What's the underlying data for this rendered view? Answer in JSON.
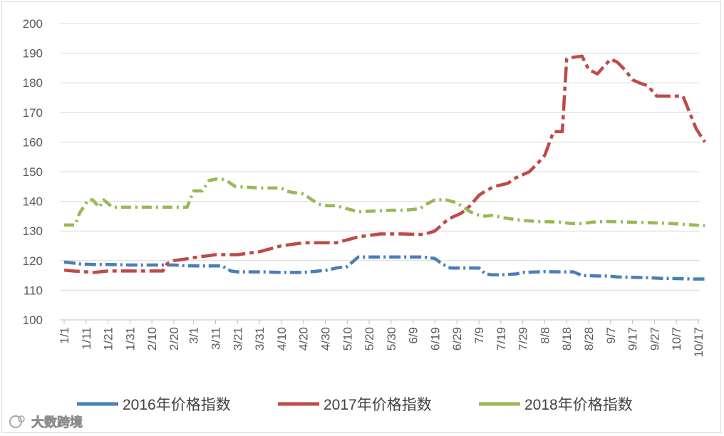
{
  "chart_data": {
    "type": "line",
    "title": "",
    "xlabel": "",
    "ylabel": "",
    "ylim": [
      100,
      200
    ],
    "yticks": [
      100,
      110,
      120,
      130,
      140,
      150,
      160,
      170,
      180,
      190,
      200
    ],
    "xlim": [
      0,
      292
    ],
    "x_tick_labels": [
      "1/1",
      "1/11",
      "1/21",
      "1/31",
      "2/10",
      "2/20",
      "3/1",
      "3/11",
      "3/21",
      "3/31",
      "4/10",
      "4/20",
      "4/30",
      "5/10",
      "5/20",
      "5/30",
      "6/9",
      "6/19",
      "6/29",
      "7/9",
      "7/19",
      "7/29",
      "8/8",
      "8/18",
      "8/28",
      "9/7",
      "9/17",
      "9/27",
      "10/7",
      "10/17"
    ],
    "grid": "horizontal",
    "legend_position": "bottom",
    "series": [
      {
        "name": "2016年价格指数",
        "color": "#4a7ebb",
        "dates": [
          "1/1",
          "1/5",
          "1/9",
          "1/14",
          "1/21",
          "1/26",
          "1/31",
          "2/10",
          "2/15",
          "2/20",
          "2/25",
          "3/1",
          "3/6",
          "3/11",
          "3/14",
          "3/18",
          "3/21",
          "4/1",
          "4/10",
          "4/20",
          "4/27",
          "5/1",
          "5/5",
          "5/10",
          "5/15",
          "5/30",
          "6/5",
          "6/13",
          "6/16",
          "6/19",
          "6/22",
          "6/26",
          "7/5",
          "7/9",
          "7/12",
          "7/15",
          "7/19",
          "7/26",
          "7/29",
          "8/5",
          "8/8",
          "8/15",
          "8/21",
          "8/25",
          "9/1",
          "9/6",
          "9/10",
          "9/20",
          "9/25",
          "9/30",
          "10/5",
          "10/10",
          "10/15",
          "10/20"
        ],
        "values": [
          119.5,
          119.2,
          118.8,
          118.7,
          118.7,
          118.6,
          118.5,
          118.5,
          118.5,
          118.5,
          118.3,
          118.2,
          118.2,
          118.2,
          118.2,
          116.5,
          116.2,
          116.2,
          116.0,
          116.0,
          116.5,
          116.8,
          117.5,
          118.0,
          121.2,
          121.2,
          121.2,
          121.2,
          121.0,
          120.7,
          119.0,
          117.5,
          117.5,
          117.5,
          115.5,
          115.2,
          115.2,
          115.5,
          116.0,
          116.2,
          116.3,
          116.2,
          116.2,
          115.0,
          114.8,
          114.8,
          114.5,
          114.3,
          114.2,
          114.0,
          114.0,
          113.9,
          113.8,
          113.8
        ]
      },
      {
        "name": "2017年价格指数",
        "color": "#be4b48",
        "dates": [
          "1/1",
          "1/5",
          "1/11",
          "1/15",
          "1/21",
          "2/1",
          "2/10",
          "2/15",
          "2/17",
          "2/20",
          "2/25",
          "3/1",
          "3/6",
          "3/11",
          "3/16",
          "3/21",
          "3/26",
          "3/31",
          "4/5",
          "4/10",
          "4/20",
          "4/30",
          "5/5",
          "5/10",
          "5/15",
          "5/25",
          "6/4",
          "6/14",
          "6/19",
          "6/22",
          "6/25",
          "7/1",
          "7/5",
          "7/9",
          "7/12",
          "7/16",
          "7/22",
          "7/26",
          "8/1",
          "8/5",
          "8/8",
          "8/12",
          "8/16",
          "8/18",
          "8/20",
          "8/25",
          "8/28",
          "9/1",
          "9/7",
          "9/10",
          "9/14",
          "9/17",
          "9/20",
          "9/24",
          "9/28",
          "10/5",
          "10/10",
          "10/13",
          "10/16",
          "10/20"
        ],
        "values": [
          116.8,
          116.5,
          116.2,
          116.0,
          116.5,
          116.5,
          116.5,
          116.5,
          119.0,
          120.0,
          120.5,
          121.0,
          121.5,
          122.0,
          122.0,
          122.0,
          122.5,
          123.0,
          124.0,
          125.0,
          126.0,
          126.0,
          126.0,
          127.0,
          128.0,
          129.0,
          129.0,
          128.8,
          130.0,
          132.0,
          134.0,
          136.0,
          138.5,
          142.0,
          143.5,
          145.0,
          146.0,
          148.0,
          150.0,
          153.0,
          155.5,
          163.5,
          163.5,
          188.0,
          188.5,
          189.0,
          184.5,
          183.0,
          188.0,
          187.0,
          184.0,
          181.0,
          180.0,
          179.0,
          175.5,
          175.5,
          175.5,
          170.0,
          164.5,
          160.0
        ]
      },
      {
        "name": "2018年价格指数",
        "color": "#98b954",
        "dates": [
          "1/1",
          "1/6",
          "1/8",
          "1/12",
          "1/14",
          "1/17",
          "1/19",
          "1/23",
          "1/31",
          "2/10",
          "2/20",
          "2/26",
          "3/1",
          "3/5",
          "3/8",
          "3/11",
          "3/14",
          "3/17",
          "3/20",
          "3/31",
          "4/10",
          "4/12",
          "4/15",
          "4/20",
          "4/27",
          "5/1",
          "5/5",
          "5/10",
          "5/15",
          "5/30",
          "6/5",
          "6/12",
          "6/15",
          "6/19",
          "6/24",
          "6/29",
          "7/1",
          "7/5",
          "7/8",
          "7/12",
          "7/15",
          "7/20",
          "7/26",
          "7/30",
          "8/5",
          "8/15",
          "8/20",
          "8/25",
          "8/30",
          "9/5",
          "9/15",
          "9/25",
          "10/5",
          "10/15",
          "10/20"
        ],
        "values": [
          132.0,
          132.0,
          136.0,
          140.5,
          140.5,
          138.0,
          140.5,
          138.0,
          138.0,
          138.0,
          138.0,
          138.0,
          143.5,
          143.5,
          147.0,
          147.5,
          147.5,
          146.5,
          145.0,
          144.5,
          144.5,
          143.5,
          143.0,
          142.5,
          139.0,
          138.5,
          138.5,
          137.5,
          136.5,
          137.0,
          137.0,
          137.5,
          139.0,
          140.5,
          140.5,
          139.5,
          138.5,
          136.5,
          135.5,
          135.0,
          135.3,
          134.5,
          133.8,
          133.5,
          133.2,
          133.0,
          132.5,
          132.5,
          133.0,
          133.2,
          133.0,
          132.8,
          132.5,
          132.0,
          131.8
        ]
      }
    ]
  },
  "watermark": "大数跨境"
}
